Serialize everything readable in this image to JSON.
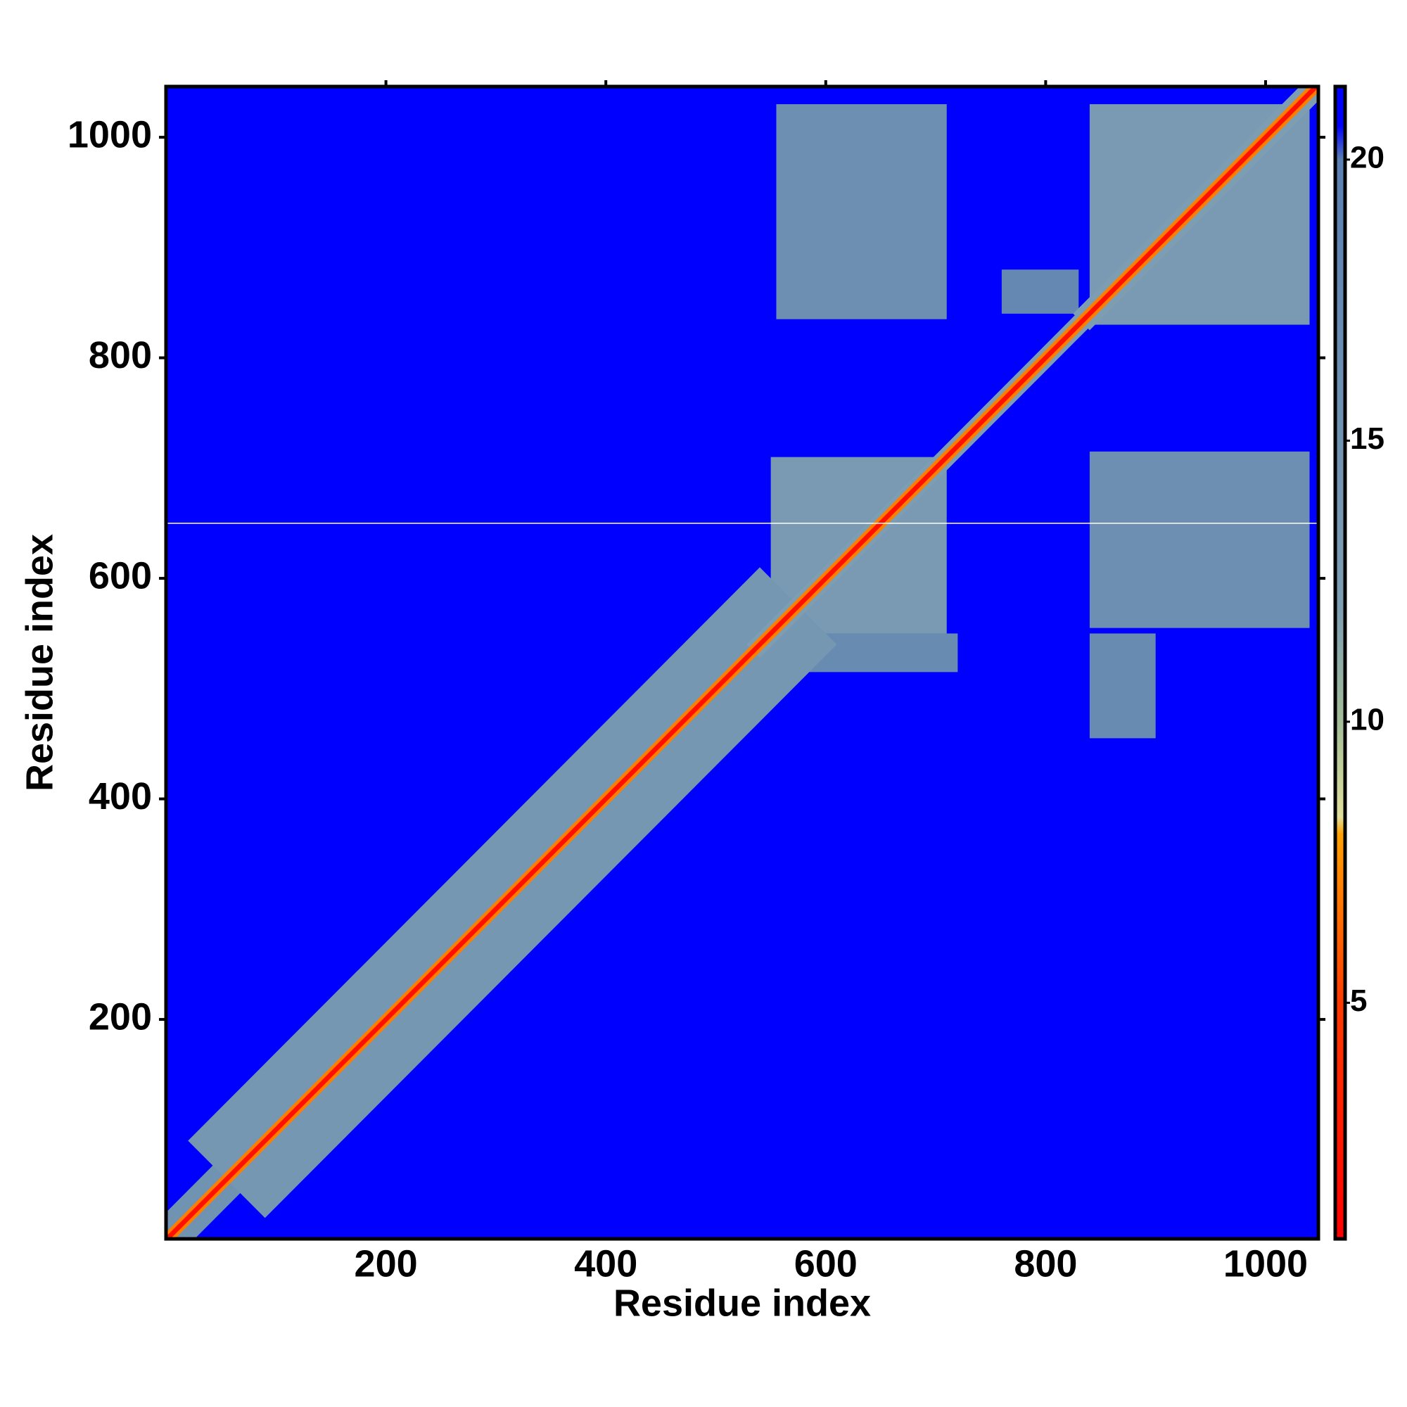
{
  "chart_data": {
    "type": "heatmap",
    "x_label": "Residue index",
    "y_label": "Residue index",
    "xlim": [
      0,
      1048
    ],
    "ylim": [
      1,
      1046
    ],
    "xticks": [
      200,
      400,
      600,
      800,
      1000
    ],
    "yticks": [
      200,
      400,
      600,
      800,
      1000
    ],
    "background_value": 21,
    "regions": [
      {
        "x": [
          555,
          710
        ],
        "y": [
          835,
          1030
        ],
        "value": 16
      },
      {
        "x": [
          840,
          1040
        ],
        "y": [
          555,
          715
        ],
        "value": 16
      },
      {
        "x": [
          560,
          720
        ],
        "y": [
          515,
          550
        ],
        "value": 17
      },
      {
        "x": [
          840,
          900
        ],
        "y": [
          455,
          550
        ],
        "value": 17
      },
      {
        "x": [
          760,
          830
        ],
        "y": [
          840,
          880
        ],
        "value": 18
      },
      {
        "x": [
          550,
          710
        ],
        "y": [
          550,
          710
        ],
        "value": 13
      },
      {
        "x": [
          840,
          1040
        ],
        "y": [
          830,
          1030
        ],
        "value": 13
      }
    ],
    "bands": [
      {
        "start": 1,
        "end": 90,
        "width": 25,
        "value": 15
      },
      {
        "start": 90,
        "end": 540,
        "width": 70,
        "value": 14
      },
      {
        "start": 540,
        "end": 840,
        "width": 12,
        "value": 12
      },
      {
        "start": 840,
        "end": 1046,
        "width": 15,
        "value": 12
      },
      {
        "start": 1,
        "end": 1046,
        "width": 7,
        "value": 7
      },
      {
        "start": 1,
        "end": 1046,
        "width": 3,
        "value": 2
      }
    ],
    "missing_rows": [
      650
    ],
    "colorbar": {
      "lim": [
        0.8,
        21.3
      ],
      "ticks": [
        5,
        10,
        15,
        20
      ],
      "stops": [
        {
          "value": 0.8,
          "color": "#ff0000"
        },
        {
          "value": 5,
          "color": "#ff3a00"
        },
        {
          "value": 8,
          "color": "#ffa000"
        },
        {
          "value": 8.3,
          "color": "#e0df9a"
        },
        {
          "value": 10,
          "color": "#a3bd98"
        },
        {
          "value": 12,
          "color": "#7d9eb2"
        },
        {
          "value": 20,
          "color": "#5b80b2"
        },
        {
          "value": 20.6,
          "color": "#0000ff"
        },
        {
          "value": 21.3,
          "color": "#0000ff"
        }
      ]
    }
  }
}
